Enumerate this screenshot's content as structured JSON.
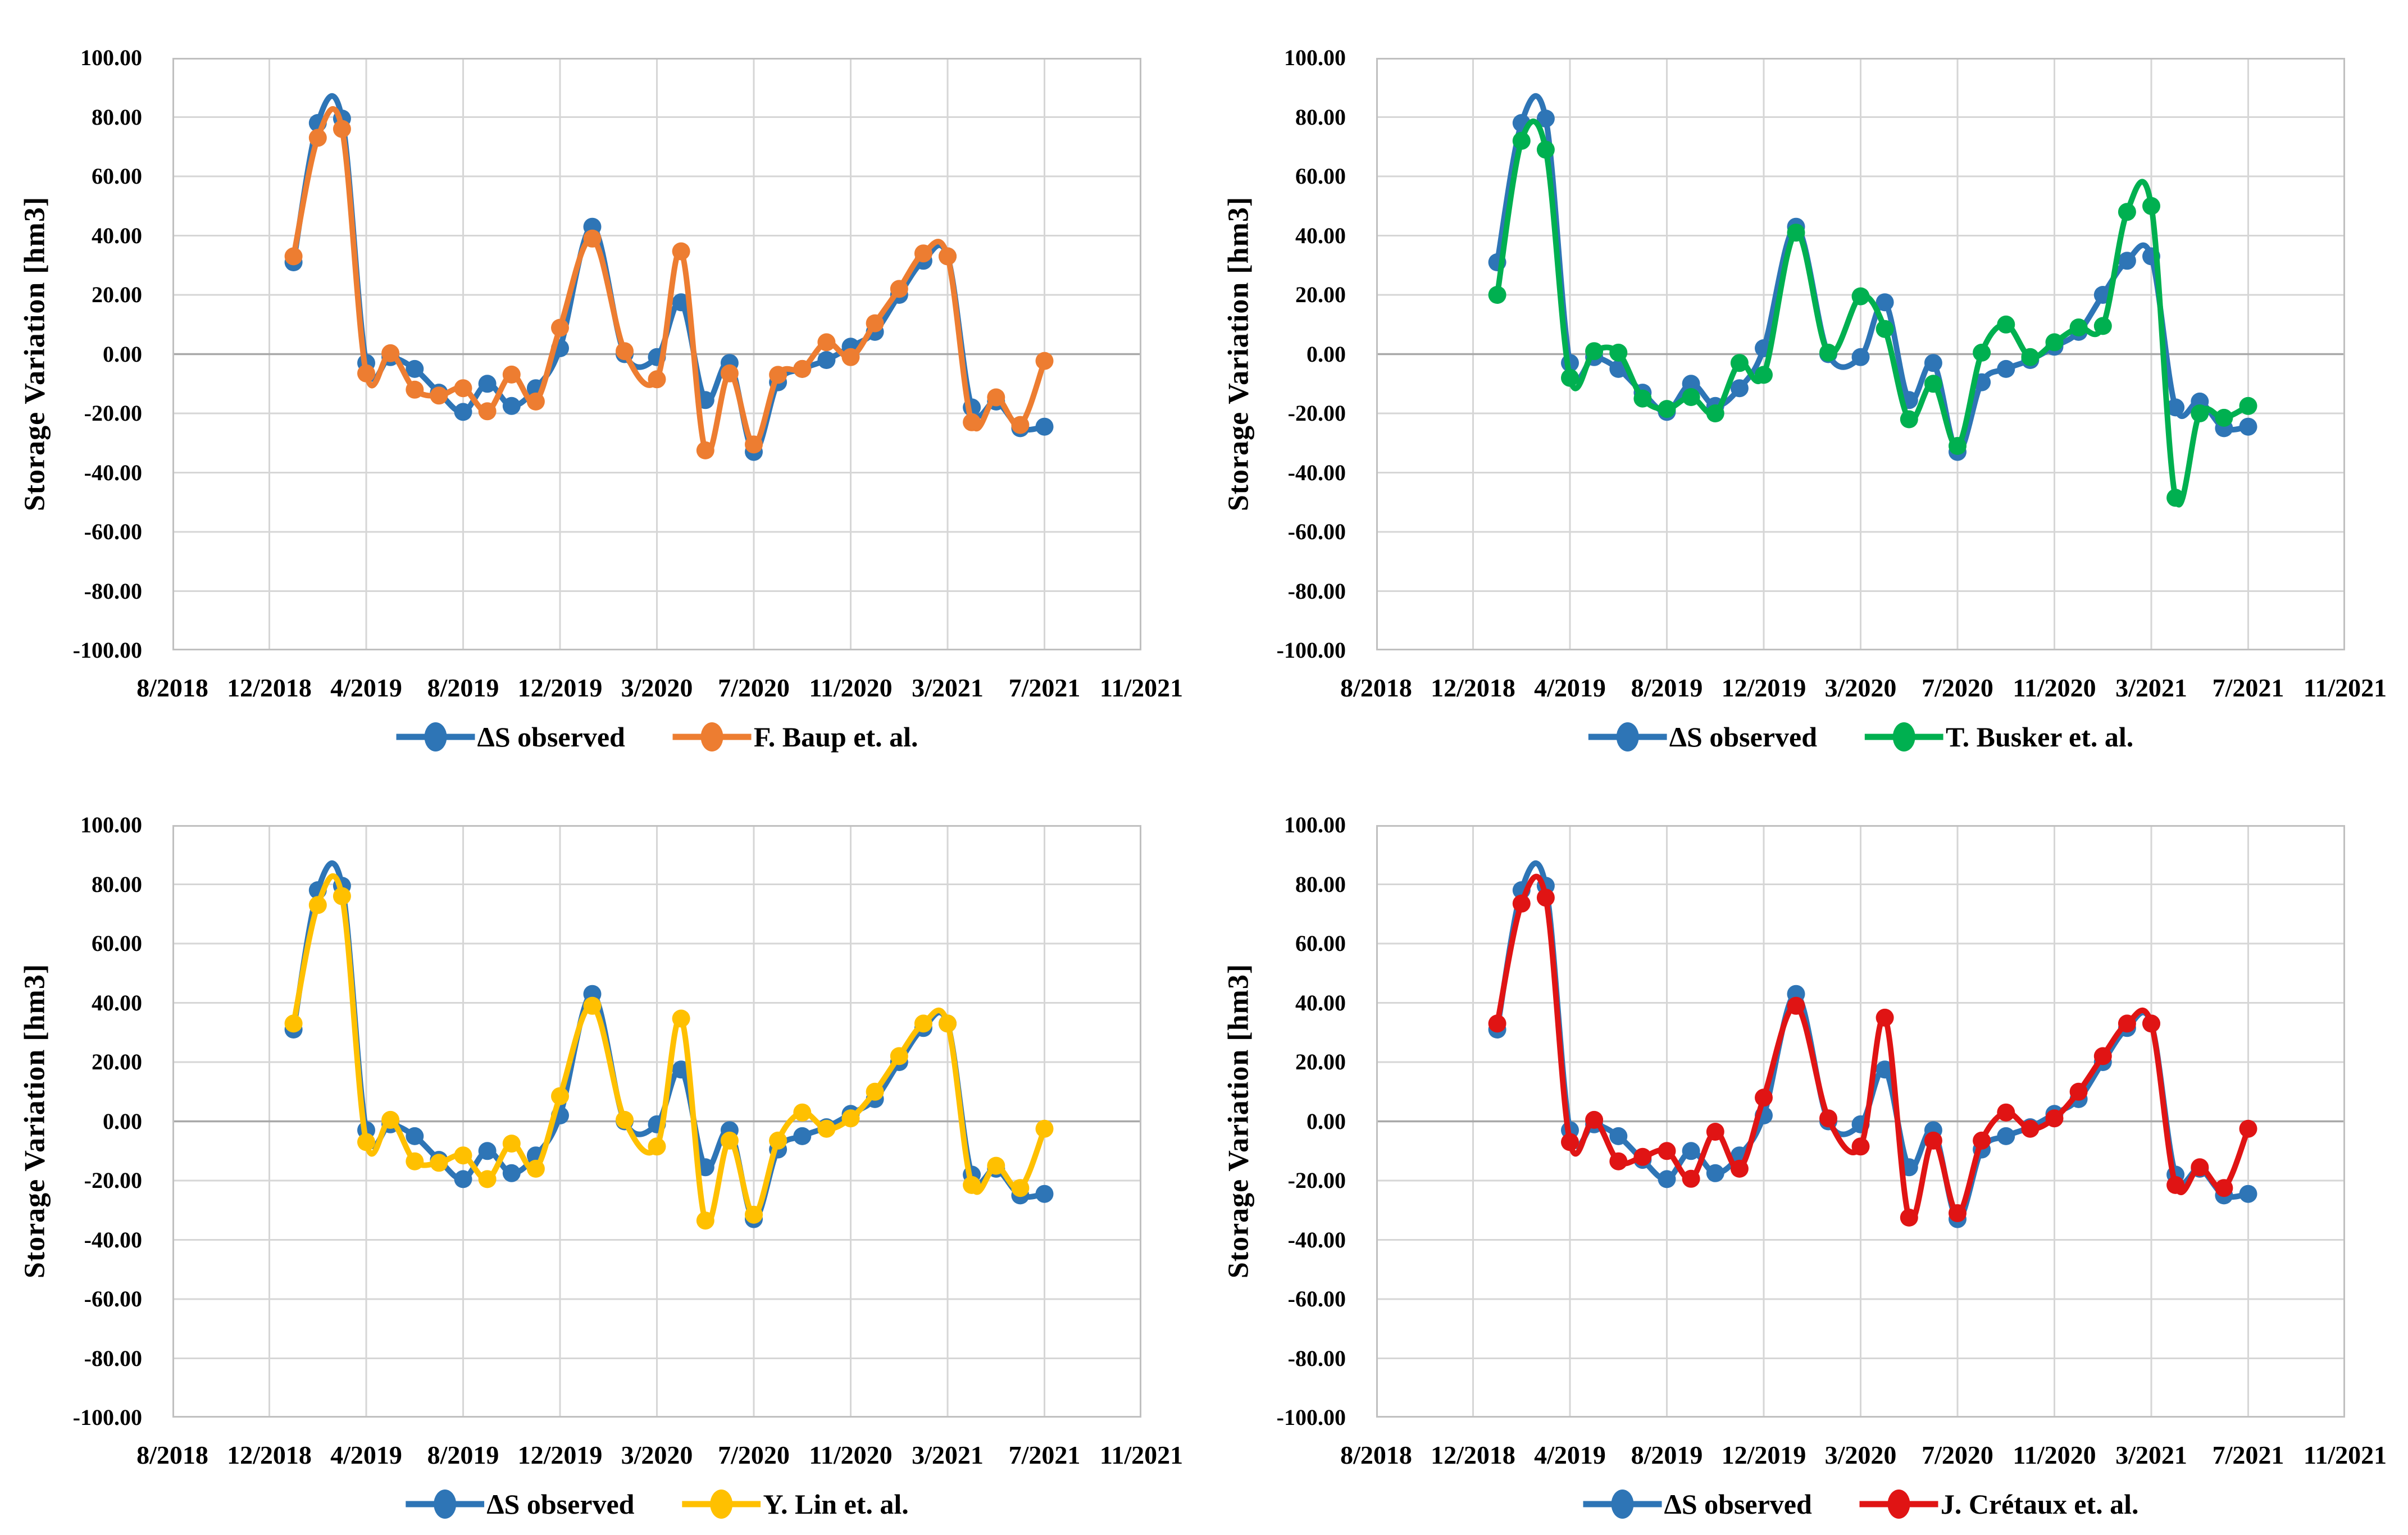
{
  "page": {
    "background": "#FFFFFF",
    "description_layout": "2x2 grid of four line charts comparing observed reservoir storage variation with four published estimation methods",
    "gridline_color": "#D6D6D6",
    "zero_line_color": "#A8A8A8",
    "plot_border_color": "#C0C0C0"
  },
  "chart_data": [
    {
      "type": "line",
      "position": "top-left",
      "title": "",
      "xlabel": "",
      "ylabel": "Storage Variation [hm3]",
      "ylim": [
        -100,
        100
      ],
      "ytick_step": 20,
      "y_tick_labels": [
        "100.00",
        "80.00",
        "60.00",
        "40.00",
        "20.00",
        "0.00",
        "-20.00",
        "-40.00",
        "-60.00",
        "-80.00",
        "-100.00"
      ],
      "x_tick_labels": [
        "8/2018",
        "12/2018",
        "4/2019",
        "8/2019",
        "12/2019",
        "3/2020",
        "7/2020",
        "11/2020",
        "3/2021",
        "7/2021",
        "11/2021"
      ],
      "x_tick_month_offsets": [
        0,
        4,
        8,
        12,
        16,
        19,
        23,
        27,
        31,
        35,
        39
      ],
      "x": [
        "1/2019",
        "2/2019",
        "3/2019",
        "4/2019",
        "5/2019",
        "6/2019",
        "7/2019",
        "8/2019",
        "9/2019",
        "10/2019",
        "11/2019",
        "12/2019",
        "1/2020",
        "2/2020",
        "3/2020",
        "4/2020",
        "5/2020",
        "6/2020",
        "7/2020",
        "8/2020",
        "9/2020",
        "10/2020",
        "11/2020",
        "12/2020",
        "1/2021",
        "2/2021",
        "3/2021",
        "4/2021",
        "5/2021",
        "6/2021",
        "7/2021"
      ],
      "x_start_month_offset": 5,
      "grid": true,
      "legend_position": "bottom",
      "line_style": "smooth",
      "marker": "circle",
      "series": [
        {
          "name": "ΔS observed",
          "color": "#2E75B6",
          "values": [
            31,
            78,
            79.5,
            -3,
            -1,
            -5,
            -13,
            -19.5,
            -10,
            -17.5,
            -11.5,
            2,
            43,
            0,
            -1,
            17.5,
            -15.5,
            -3,
            -33,
            -9.5,
            -5,
            -2,
            2.5,
            7.5,
            20,
            31.5,
            33,
            -18,
            -16,
            -25,
            -24.5
          ]
        },
        {
          "name": "F. Baup et. al.",
          "color": "#ED7D31",
          "values": [
            33,
            73,
            76,
            -6.5,
            0.3,
            -12,
            -14,
            -11.5,
            -19.3,
            -6.9,
            -16,
            8.9,
            39,
            1,
            -8.5,
            34.7,
            -32.5,
            -6.5,
            -30.5,
            -7,
            -5,
            4,
            -1,
            10.4,
            22,
            34,
            33,
            -23,
            -14.6,
            -23.9,
            -2.3
          ]
        }
      ]
    },
    {
      "type": "line",
      "position": "top-right",
      "title": "",
      "xlabel": "",
      "ylabel": "Storage Variation [hm3]",
      "ylim": [
        -100,
        100
      ],
      "ytick_step": 20,
      "y_tick_labels": [
        "100.00",
        "80.00",
        "60.00",
        "40.00",
        "20.00",
        "0.00",
        "-20.00",
        "-40.00",
        "-60.00",
        "-80.00",
        "-100.00"
      ],
      "x_tick_labels": [
        "8/2018",
        "12/2018",
        "4/2019",
        "8/2019",
        "12/2019",
        "3/2020",
        "7/2020",
        "11/2020",
        "3/2021",
        "7/2021",
        "11/2021"
      ],
      "x_tick_month_offsets": [
        0,
        4,
        8,
        12,
        16,
        19,
        23,
        27,
        31,
        35,
        39
      ],
      "x": [
        "1/2019",
        "2/2019",
        "3/2019",
        "4/2019",
        "5/2019",
        "6/2019",
        "7/2019",
        "8/2019",
        "9/2019",
        "10/2019",
        "11/2019",
        "12/2019",
        "1/2020",
        "2/2020",
        "3/2020",
        "4/2020",
        "5/2020",
        "6/2020",
        "7/2020",
        "8/2020",
        "9/2020",
        "10/2020",
        "11/2020",
        "12/2020",
        "1/2021",
        "2/2021",
        "3/2021",
        "4/2021",
        "5/2021",
        "6/2021",
        "7/2021"
      ],
      "x_start_month_offset": 5,
      "grid": true,
      "legend_position": "bottom",
      "line_style": "smooth",
      "marker": "circle",
      "series": [
        {
          "name": "ΔS observed",
          "color": "#2E75B6",
          "values": [
            31,
            78,
            79.5,
            -3,
            -1,
            -5,
            -13,
            -19.5,
            -10,
            -17.5,
            -11.5,
            2,
            43,
            0,
            -1,
            17.5,
            -15.5,
            -3,
            -33,
            -9.5,
            -5,
            -2,
            2.5,
            7.5,
            20,
            31.5,
            33,
            -18,
            -16,
            -25,
            -24.5
          ]
        },
        {
          "name": "T. Busker et. al.",
          "color": "#00B050",
          "values": [
            20,
            72,
            69,
            -8,
            1,
            0.5,
            -15,
            -18.5,
            -14.5,
            -20,
            -3,
            -7,
            41,
            0.5,
            19.5,
            8.5,
            -22,
            -10,
            -31,
            0.5,
            10,
            -1,
            4,
            9,
            9.5,
            48,
            50,
            -48.5,
            -20,
            -21.5,
            -17.5
          ]
        }
      ]
    },
    {
      "type": "line",
      "position": "bottom-left",
      "title": "",
      "xlabel": "",
      "ylabel": "Storage Variation [hm3]",
      "ylim": [
        -100,
        100
      ],
      "ytick_step": 20,
      "y_tick_labels": [
        "100.00",
        "80.00",
        "60.00",
        "40.00",
        "20.00",
        "0.00",
        "-20.00",
        "-40.00",
        "-60.00",
        "-80.00",
        "-100.00"
      ],
      "x_tick_labels": [
        "8/2018",
        "12/2018",
        "4/2019",
        "8/2019",
        "12/2019",
        "3/2020",
        "7/2020",
        "11/2020",
        "3/2021",
        "7/2021",
        "11/2021"
      ],
      "x_tick_month_offsets": [
        0,
        4,
        8,
        12,
        16,
        19,
        23,
        27,
        31,
        35,
        39
      ],
      "x": [
        "1/2019",
        "2/2019",
        "3/2019",
        "4/2019",
        "5/2019",
        "6/2019",
        "7/2019",
        "8/2019",
        "9/2019",
        "10/2019",
        "11/2019",
        "12/2019",
        "1/2020",
        "2/2020",
        "3/2020",
        "4/2020",
        "5/2020",
        "6/2020",
        "7/2020",
        "8/2020",
        "9/2020",
        "10/2020",
        "11/2020",
        "12/2020",
        "1/2021",
        "2/2021",
        "3/2021",
        "4/2021",
        "5/2021",
        "6/2021",
        "7/2021"
      ],
      "x_start_month_offset": 5,
      "grid": true,
      "legend_position": "bottom",
      "line_style": "smooth",
      "marker": "circle",
      "series": [
        {
          "name": "ΔS observed",
          "color": "#2E75B6",
          "values": [
            31,
            78,
            79.5,
            -3,
            -1,
            -5,
            -13,
            -19.5,
            -10,
            -17.5,
            -11.5,
            2,
            43,
            0,
            -1,
            17.5,
            -15.5,
            -3,
            -33,
            -9.5,
            -5,
            -2,
            2.5,
            7.5,
            20,
            31.5,
            33,
            -18,
            -16,
            -25,
            -24.5
          ]
        },
        {
          "name": "Y. Lin et. al.",
          "color": "#FFC000",
          "values": [
            33,
            73,
            76,
            -7,
            0.5,
            -13.5,
            -14,
            -11.5,
            -19.5,
            -7.5,
            -16,
            8.5,
            39,
            0.5,
            -8.5,
            34.7,
            -33.5,
            -6.5,
            -31.5,
            -6.5,
            3,
            -2.5,
            1,
            10,
            22,
            33,
            33,
            -21.5,
            -15,
            -22.5,
            -2.5
          ]
        }
      ]
    },
    {
      "type": "line",
      "position": "bottom-right",
      "title": "",
      "xlabel": "",
      "ylabel": "Storage Variation [hm3]",
      "ylim": [
        -100,
        100
      ],
      "ytick_step": 20,
      "y_tick_labels": [
        "100.00",
        "80.00",
        "60.00",
        "40.00",
        "20.00",
        "0.00",
        "-20.00",
        "-40.00",
        "-60.00",
        "-80.00",
        "-100.00"
      ],
      "x_tick_labels": [
        "8/2018",
        "12/2018",
        "4/2019",
        "8/2019",
        "12/2019",
        "3/2020",
        "7/2020",
        "11/2020",
        "3/2021",
        "7/2021",
        "11/2021"
      ],
      "x_tick_month_offsets": [
        0,
        4,
        8,
        12,
        16,
        19,
        23,
        27,
        31,
        35,
        39
      ],
      "x": [
        "1/2019",
        "2/2019",
        "3/2019",
        "4/2019",
        "5/2019",
        "6/2019",
        "7/2019",
        "8/2019",
        "9/2019",
        "10/2019",
        "11/2019",
        "12/2019",
        "1/2020",
        "2/2020",
        "3/2020",
        "4/2020",
        "5/2020",
        "6/2020",
        "7/2020",
        "8/2020",
        "9/2020",
        "10/2020",
        "11/2020",
        "12/2020",
        "1/2021",
        "2/2021",
        "3/2021",
        "4/2021",
        "5/2021",
        "6/2021",
        "7/2021"
      ],
      "x_start_month_offset": 5,
      "grid": true,
      "legend_position": "bottom",
      "line_style": "smooth",
      "marker": "circle",
      "series": [
        {
          "name": "ΔS observed",
          "color": "#2E75B6",
          "values": [
            31,
            78,
            79.5,
            -3,
            -1,
            -5,
            -13,
            -19.5,
            -10,
            -17.5,
            -11.5,
            2,
            43,
            0,
            -1,
            17.5,
            -15.5,
            -3,
            -33,
            -9.5,
            -5,
            -2,
            2.5,
            7.5,
            20,
            31.5,
            33,
            -18,
            -16,
            -25,
            -24.5
          ]
        },
        {
          "name": "J. Crétaux et. al.",
          "color": "#E01414",
          "values": [
            33,
            73.5,
            75.5,
            -7,
            0.5,
            -13.5,
            -12,
            -10,
            -19.4,
            -3.5,
            -16,
            8,
            39,
            1,
            -8.5,
            35,
            -32.5,
            -6.5,
            -31,
            -6.5,
            3,
            -2.5,
            1,
            10,
            22,
            33,
            33,
            -21.5,
            -15.5,
            -22.5,
            -2.5
          ]
        }
      ]
    }
  ]
}
